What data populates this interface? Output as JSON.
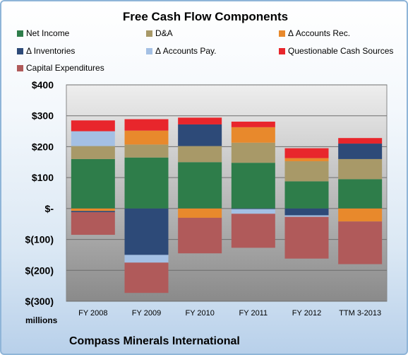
{
  "chart_data": {
    "type": "bar",
    "stacked": true,
    "title": "Free Cash Flow Components",
    "subtitle": "Compass Minerals International",
    "ylabel": "millions",
    "xlabel": "",
    "ylim": [
      -300,
      400
    ],
    "yticks": [
      400,
      300,
      200,
      100,
      0,
      -100,
      -200,
      -300
    ],
    "ytick_labels": [
      "$400",
      "$300",
      "$200",
      "$100",
      "$-",
      "$(100)",
      "$(200)",
      "$(300)"
    ],
    "categories": [
      "FY 2008",
      "FY 2009",
      "FY 2010",
      "FY 2011",
      "FY 2012",
      "TTM 3-2013"
    ],
    "grid": true,
    "legend_position": "top",
    "series": [
      {
        "name": "Net Income",
        "color": "#2e7d4a",
        "values": [
          160,
          165,
          150,
          148,
          88,
          95
        ]
      },
      {
        "name": "D&A",
        "color": "#a89968",
        "values": [
          42,
          42,
          52,
          65,
          65,
          65
        ]
      },
      {
        "name": "Δ Accounts Rec.",
        "color": "#e8892c",
        "values": [
          -8,
          45,
          -30,
          50,
          10,
          -42
        ]
      },
      {
        "name": "Δ Inventories",
        "color": "#2d4a78",
        "values": [
          -4,
          -150,
          70,
          -2,
          -22,
          50
        ]
      },
      {
        "name": "Δ Accounts Pay.",
        "color": "#a4c0e4",
        "values": [
          48,
          -25,
          0,
          -15,
          -5,
          0
        ]
      },
      {
        "name": "Questionable Cash Sources",
        "color": "#e8262c",
        "values": [
          35,
          37,
          22,
          18,
          32,
          18
        ]
      },
      {
        "name": "Capital Expenditures",
        "color": "#b05a5a",
        "values": [
          -73,
          -98,
          -115,
          -110,
          -135,
          -138
        ]
      }
    ]
  }
}
